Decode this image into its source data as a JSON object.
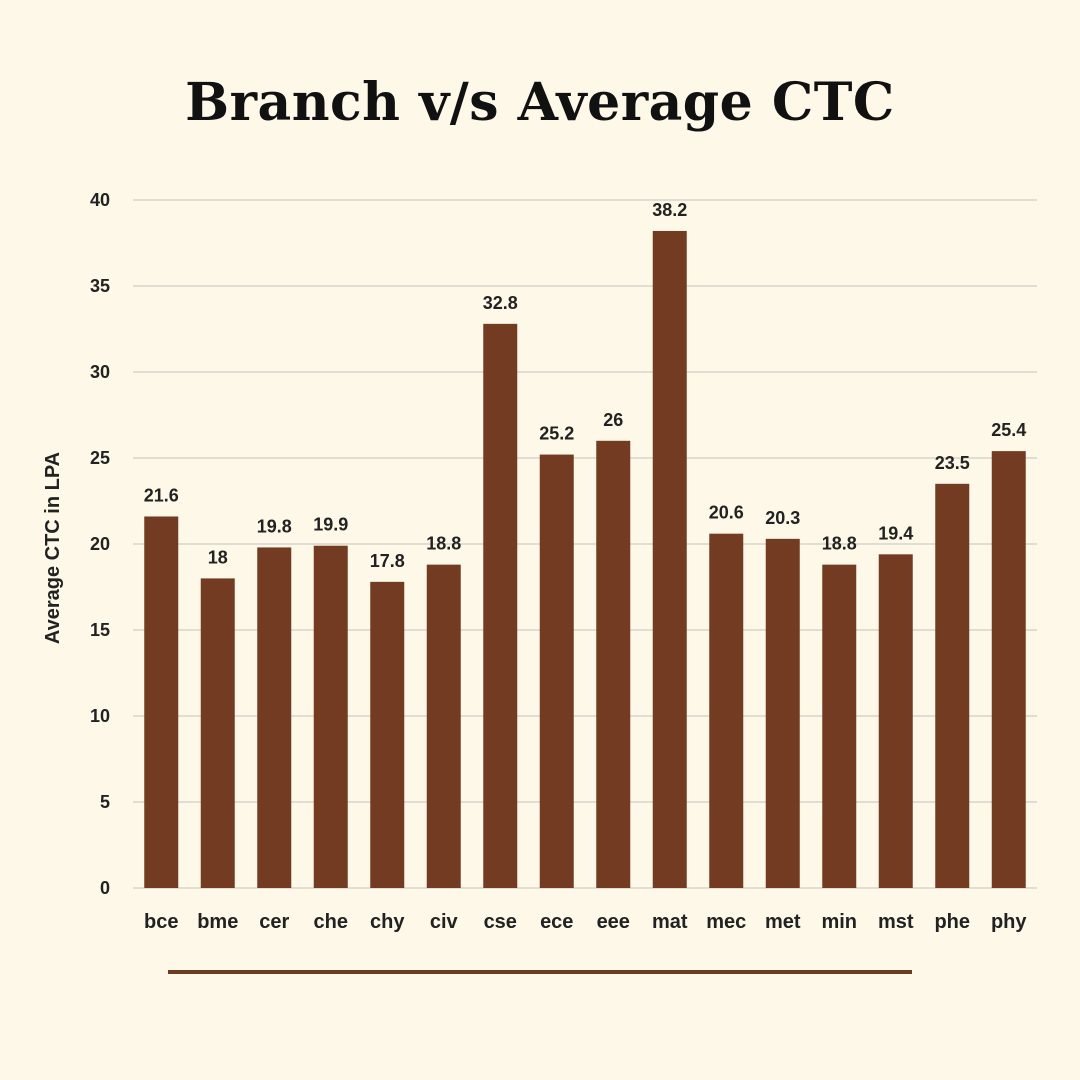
{
  "colors": {
    "background": "#fdf8e8",
    "bar": "#733c22",
    "divider": "#6b3d20"
  },
  "chart_data": {
    "type": "bar",
    "title": "Branch v/s Average CTC",
    "xlabel": "",
    "ylabel": "Average CTC in LPA",
    "ylim": [
      0,
      40
    ],
    "yticks": [
      "0",
      "5",
      "10",
      "15",
      "20",
      "25",
      "30",
      "35",
      "40"
    ],
    "grid": true,
    "legend": "none",
    "categories": [
      "bce",
      "bme",
      "cer",
      "che",
      "chy",
      "civ",
      "cse",
      "ece",
      "eee",
      "mat",
      "mec",
      "met",
      "min",
      "mst",
      "phe",
      "phy"
    ],
    "values": [
      21.6,
      18,
      19.8,
      19.9,
      17.8,
      18.8,
      32.8,
      25.2,
      26,
      38.2,
      20.6,
      20.3,
      18.8,
      19.4,
      23.5,
      25.4
    ],
    "value_labels": [
      "21.6",
      "18",
      "19.8",
      "19.9",
      "17.8",
      "18.8",
      "32.8",
      "25.2",
      "26",
      "38.2",
      "20.6",
      "20.3",
      "18.8",
      "19.4",
      "23.5",
      "25.4"
    ]
  }
}
